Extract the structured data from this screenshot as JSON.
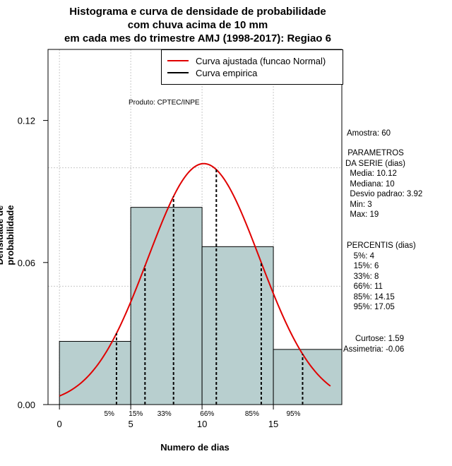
{
  "chart_data": {
    "type": "bar",
    "title_lines": [
      "Histograma e curva de densidade de probabilidade",
      "com chuva acima de 10 mm",
      "em cada mes do trimestre AMJ (1998-2017): Regiao 6"
    ],
    "xlabel": "Numero de dias",
    "ylabel": "Densidade de probabilidade",
    "xlim": [
      -0.8,
      19.8
    ],
    "ylim": [
      0,
      0.15
    ],
    "x_ticks": [
      0,
      5,
      10,
      15
    ],
    "y_ticks": [
      0.0,
      0.06,
      0.12
    ],
    "y_tick_labels": [
      "0.00",
      "0.06",
      "0.12"
    ],
    "grid": true,
    "bins": [
      {
        "from": 0,
        "to": 5,
        "density": 0.0267
      },
      {
        "from": 5,
        "to": 10,
        "density": 0.0833
      },
      {
        "from": 10,
        "to": 15,
        "density": 0.0667
      },
      {
        "from": 15,
        "to": 20,
        "density": 0.0233
      }
    ],
    "normal_fit": {
      "mean": 10.12,
      "sd": 3.92,
      "x_from": 0,
      "x_to": 19
    },
    "percentile_lines": [
      {
        "label": "5%",
        "x": 4
      },
      {
        "label": "15%",
        "x": 6
      },
      {
        "label": "33%",
        "x": 8
      },
      {
        "label": "66%",
        "x": 11
      },
      {
        "label": "85%",
        "x": 14.15
      },
      {
        "label": "95%",
        "x": 17.05
      }
    ],
    "legend": [
      {
        "label": "Curva ajustada (funcao Normal)",
        "color": "#e00000"
      },
      {
        "label": "Curva empirica",
        "color": "#000000"
      }
    ],
    "bar_fill": "#b8cfcf",
    "curve_color": "#e00000",
    "produto": "Produto: CPTEC/INPE"
  },
  "stats": {
    "amostra": "Amostra: 60",
    "parametros_title_1": " PARAMETROS",
    "parametros_title_2": "DA SERIE (dias)",
    "media": "  Media: 10.12",
    "mediana": "  Mediana: 10",
    "desvio": "  Desvio padrao: 3.92",
    "min": "  Min: 3",
    "max": "  Max: 19",
    "percentis_title": "PERCENTIS (dias)",
    "p5": "   5%: 4",
    "p15": "   15%: 6",
    "p33": "   33%: 8",
    "p66": "   66%: 11",
    "p85": "   85%: 14.15",
    "p95": "   95%: 17.05",
    "curtose": "Curtose: 1.59",
    "assimetria": "Assimetria: -0.06"
  }
}
